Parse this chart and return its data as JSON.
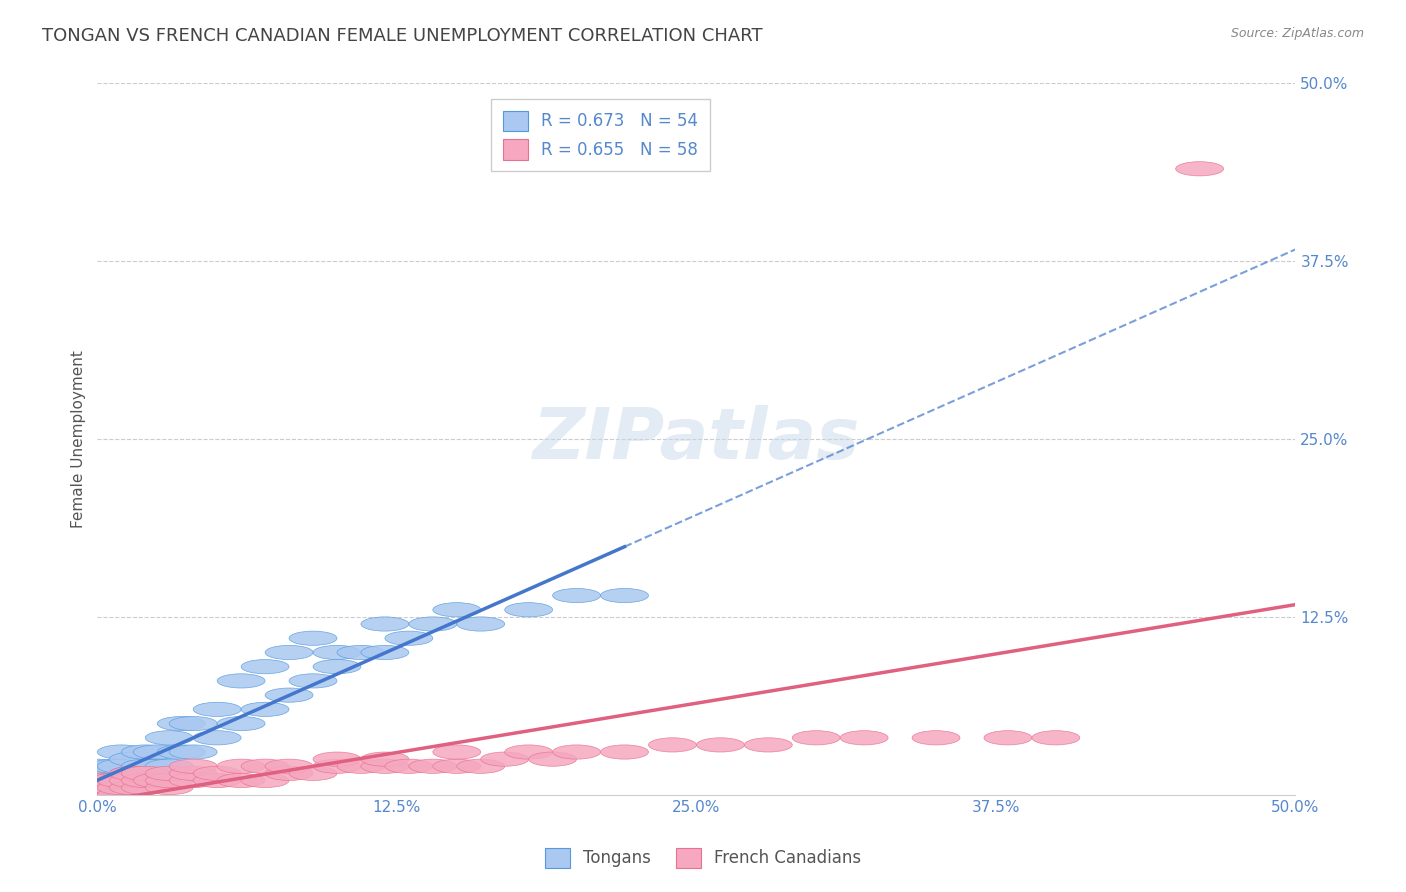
{
  "title": "TONGAN VS FRENCH CANADIAN FEMALE UNEMPLOYMENT CORRELATION CHART",
  "source": "Source: ZipAtlas.com",
  "ylabel": "Female Unemployment",
  "xlim": [
    0.0,
    0.5
  ],
  "ylim": [
    0.0,
    0.5
  ],
  "xtick_labels": [
    "0.0%",
    "12.5%",
    "25.0%",
    "37.5%",
    "50.0%"
  ],
  "xtick_vals": [
    0.0,
    0.125,
    0.25,
    0.375,
    0.5
  ],
  "ytick_labels": [
    "50.0%",
    "37.5%",
    "25.0%",
    "12.5%"
  ],
  "ytick_vals": [
    0.5,
    0.375,
    0.25,
    0.125
  ],
  "tongan_R": 0.673,
  "tongan_N": 54,
  "french_R": 0.655,
  "french_N": 58,
  "tongan_color": "#aac8f0",
  "tongan_edge_color": "#5599dd",
  "tongan_line_color": "#4477cc",
  "french_color": "#f5a8c0",
  "french_edge_color": "#e87090",
  "french_line_color": "#e06080",
  "tongan_scatter": [
    [
      0.0,
      0.0
    ],
    [
      0.0,
      0.005
    ],
    [
      0.0,
      0.01
    ],
    [
      0.0,
      0.015
    ],
    [
      0.0,
      0.02
    ],
    [
      0.003,
      0.0
    ],
    [
      0.003,
      0.005
    ],
    [
      0.005,
      0.0
    ],
    [
      0.005,
      0.01
    ],
    [
      0.005,
      0.015
    ],
    [
      0.007,
      0.005
    ],
    [
      0.007,
      0.01
    ],
    [
      0.007,
      0.02
    ],
    [
      0.01,
      0.0
    ],
    [
      0.01,
      0.005
    ],
    [
      0.01,
      0.01
    ],
    [
      0.01,
      0.02
    ],
    [
      0.01,
      0.03
    ],
    [
      0.015,
      0.01
    ],
    [
      0.015,
      0.015
    ],
    [
      0.015,
      0.025
    ],
    [
      0.02,
      0.01
    ],
    [
      0.02,
      0.02
    ],
    [
      0.02,
      0.03
    ],
    [
      0.025,
      0.02
    ],
    [
      0.025,
      0.03
    ],
    [
      0.03,
      0.02
    ],
    [
      0.03,
      0.04
    ],
    [
      0.035,
      0.03
    ],
    [
      0.035,
      0.05
    ],
    [
      0.04,
      0.03
    ],
    [
      0.04,
      0.05
    ],
    [
      0.05,
      0.04
    ],
    [
      0.05,
      0.06
    ],
    [
      0.06,
      0.05
    ],
    [
      0.06,
      0.08
    ],
    [
      0.07,
      0.06
    ],
    [
      0.07,
      0.09
    ],
    [
      0.08,
      0.07
    ],
    [
      0.08,
      0.1
    ],
    [
      0.09,
      0.08
    ],
    [
      0.09,
      0.11
    ],
    [
      0.1,
      0.09
    ],
    [
      0.1,
      0.1
    ],
    [
      0.11,
      0.1
    ],
    [
      0.12,
      0.1
    ],
    [
      0.12,
      0.12
    ],
    [
      0.13,
      0.11
    ],
    [
      0.14,
      0.12
    ],
    [
      0.15,
      0.13
    ],
    [
      0.16,
      0.12
    ],
    [
      0.18,
      0.13
    ],
    [
      0.2,
      0.14
    ],
    [
      0.22,
      0.14
    ]
  ],
  "french_scatter": [
    [
      0.0,
      0.0
    ],
    [
      0.0,
      0.005
    ],
    [
      0.0,
      0.01
    ],
    [
      0.003,
      0.0
    ],
    [
      0.003,
      0.005
    ],
    [
      0.005,
      0.0
    ],
    [
      0.005,
      0.005
    ],
    [
      0.007,
      0.005
    ],
    [
      0.007,
      0.01
    ],
    [
      0.01,
      0.0
    ],
    [
      0.01,
      0.005
    ],
    [
      0.01,
      0.01
    ],
    [
      0.015,
      0.005
    ],
    [
      0.015,
      0.01
    ],
    [
      0.015,
      0.015
    ],
    [
      0.02,
      0.005
    ],
    [
      0.02,
      0.01
    ],
    [
      0.02,
      0.015
    ],
    [
      0.025,
      0.01
    ],
    [
      0.03,
      0.005
    ],
    [
      0.03,
      0.01
    ],
    [
      0.03,
      0.015
    ],
    [
      0.04,
      0.01
    ],
    [
      0.04,
      0.015
    ],
    [
      0.04,
      0.02
    ],
    [
      0.05,
      0.01
    ],
    [
      0.05,
      0.015
    ],
    [
      0.06,
      0.01
    ],
    [
      0.06,
      0.02
    ],
    [
      0.07,
      0.01
    ],
    [
      0.07,
      0.02
    ],
    [
      0.08,
      0.015
    ],
    [
      0.08,
      0.02
    ],
    [
      0.09,
      0.015
    ],
    [
      0.1,
      0.02
    ],
    [
      0.1,
      0.025
    ],
    [
      0.11,
      0.02
    ],
    [
      0.12,
      0.02
    ],
    [
      0.12,
      0.025
    ],
    [
      0.13,
      0.02
    ],
    [
      0.14,
      0.02
    ],
    [
      0.15,
      0.02
    ],
    [
      0.15,
      0.03
    ],
    [
      0.16,
      0.02
    ],
    [
      0.17,
      0.025
    ],
    [
      0.18,
      0.03
    ],
    [
      0.19,
      0.025
    ],
    [
      0.2,
      0.03
    ],
    [
      0.22,
      0.03
    ],
    [
      0.24,
      0.035
    ],
    [
      0.26,
      0.035
    ],
    [
      0.28,
      0.035
    ],
    [
      0.3,
      0.04
    ],
    [
      0.32,
      0.04
    ],
    [
      0.35,
      0.04
    ],
    [
      0.38,
      0.04
    ],
    [
      0.4,
      0.04
    ],
    [
      0.46,
      0.44
    ]
  ],
  "background_color": "#ffffff",
  "grid_color": "#cccccc",
  "watermark": "ZIPatlas",
  "title_fontsize": 13,
  "axis_label_fontsize": 11,
  "tick_label_color": "#5588cc",
  "tick_label_fontsize": 11,
  "legend_fontsize": 12
}
